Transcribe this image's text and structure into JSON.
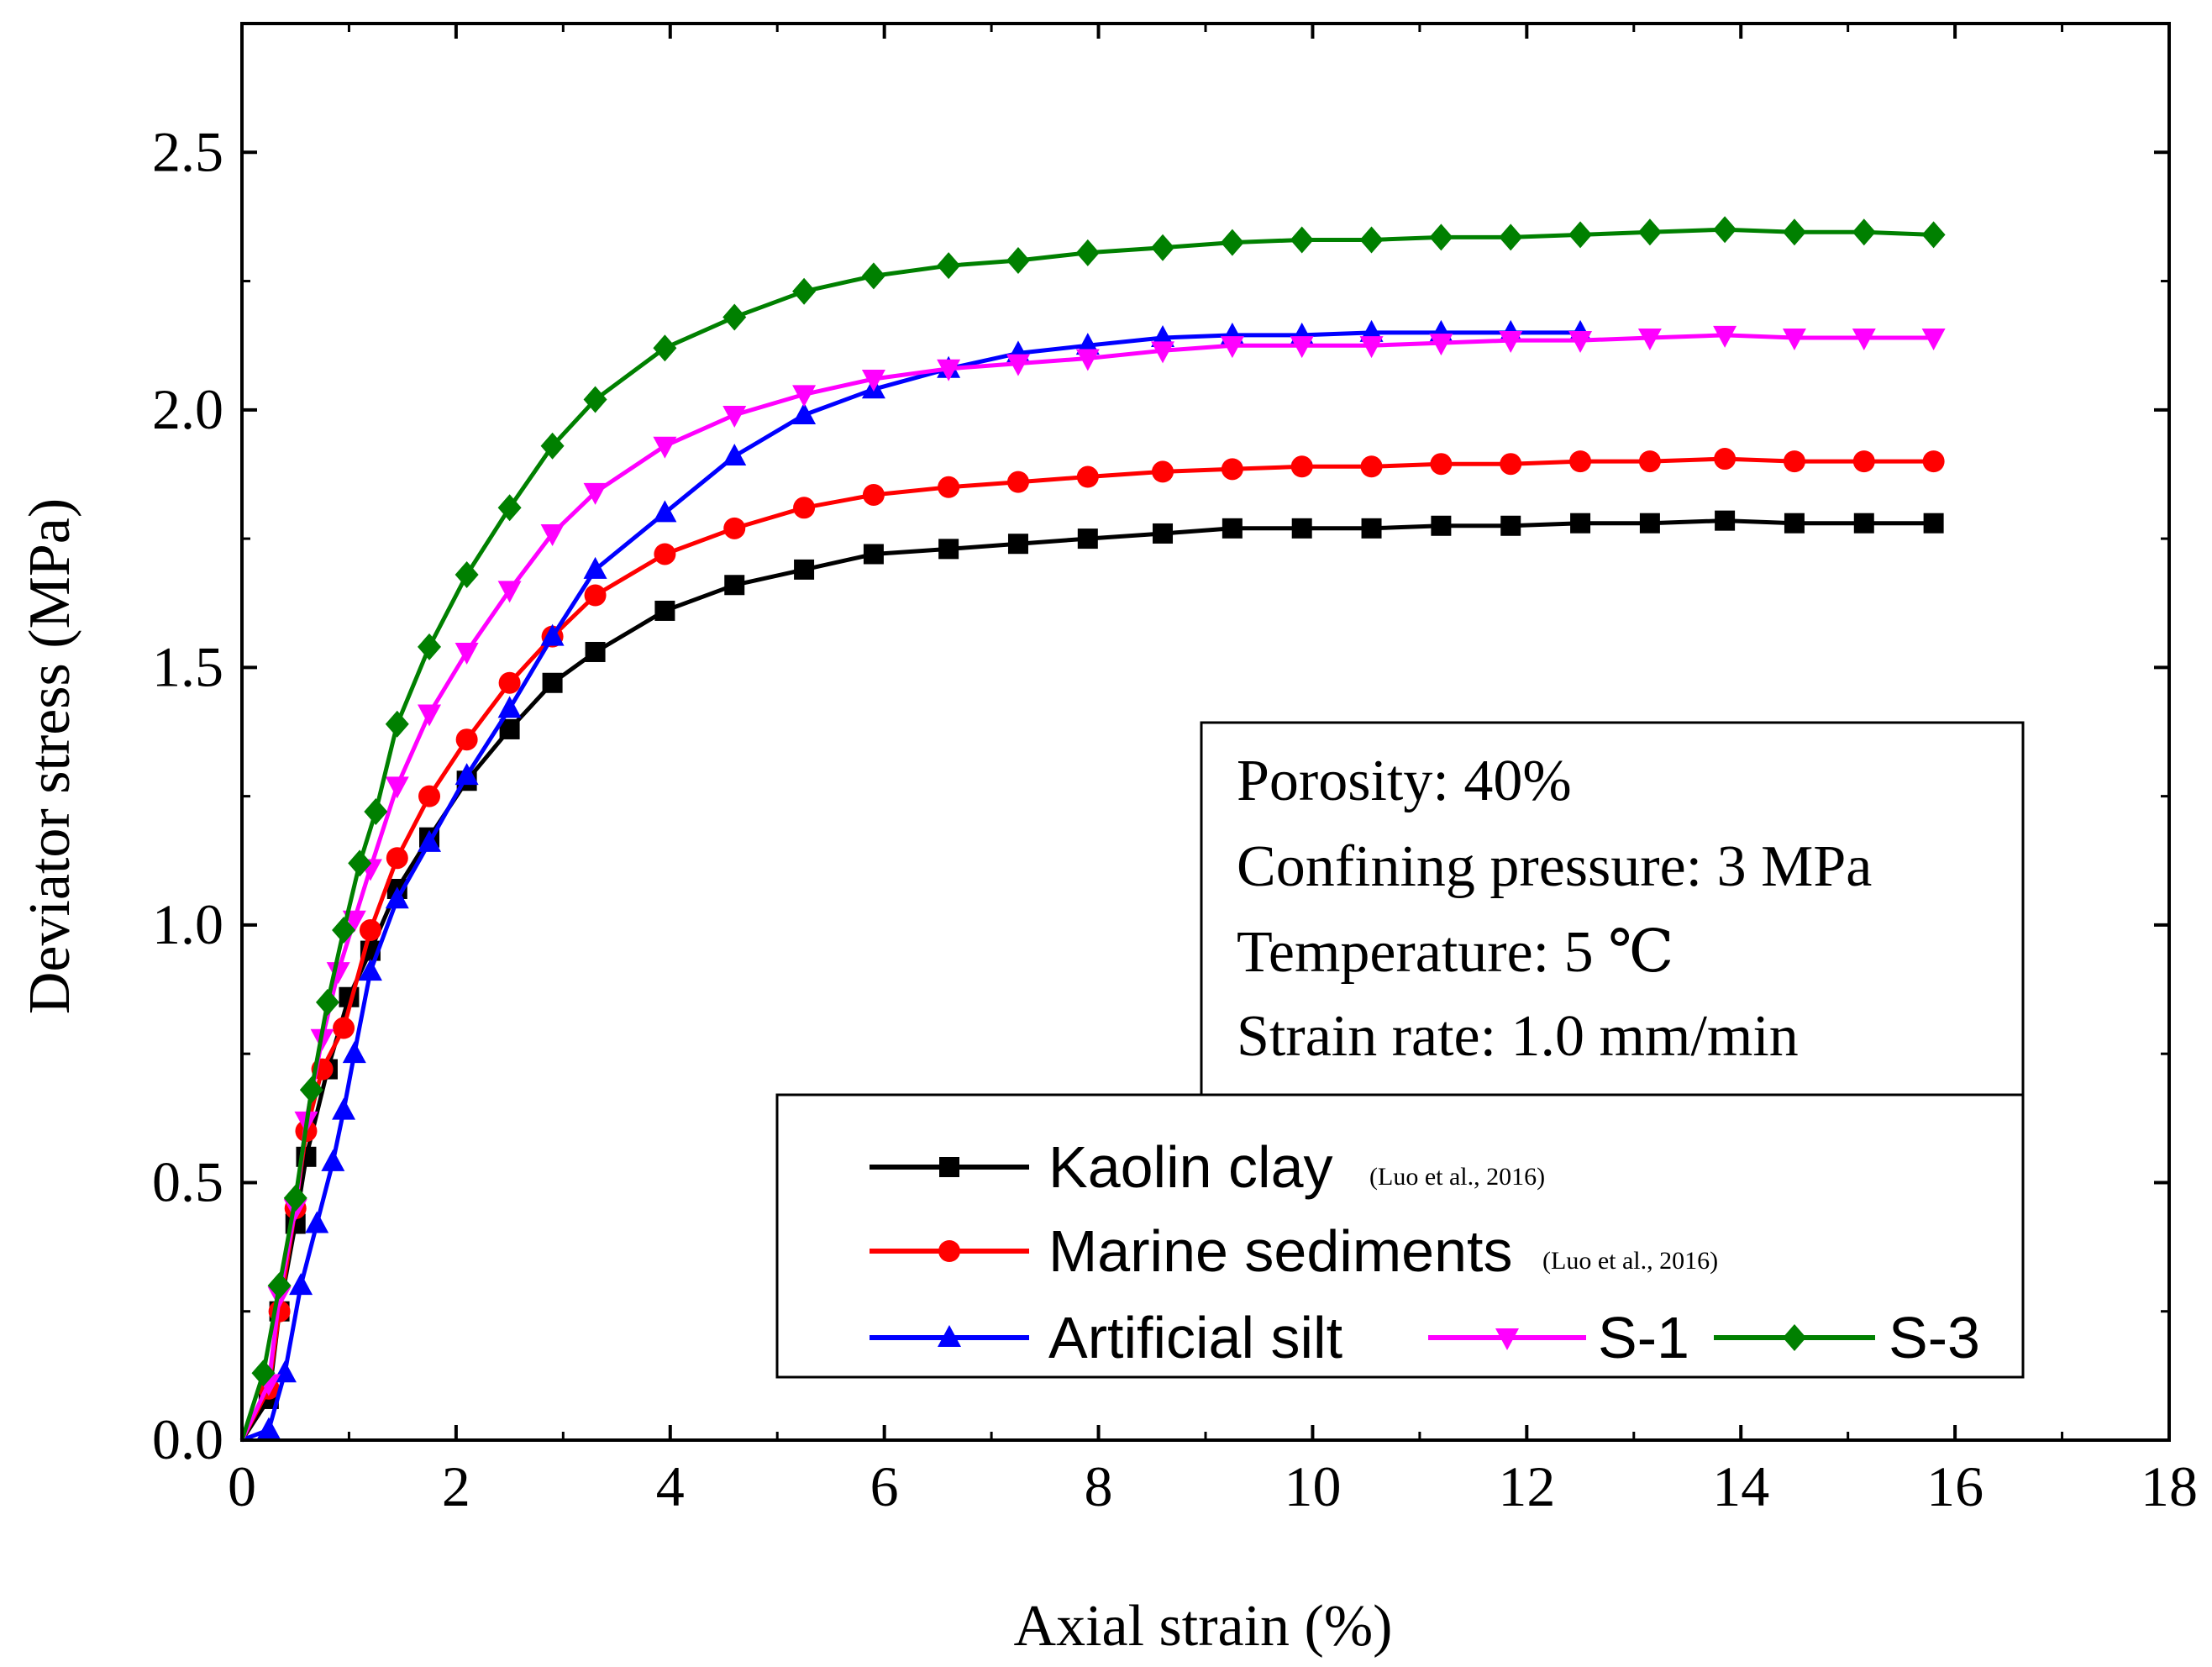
{
  "chart_data": {
    "type": "line",
    "xlabel": "Axial strain (%)",
    "ylabel": "Deviator stress (MPa)",
    "xlim": [
      0,
      18
    ],
    "ylim": [
      0,
      2.75
    ],
    "xticks": [
      0,
      2,
      4,
      6,
      8,
      10,
      12,
      14,
      16,
      18
    ],
    "yticks": [
      0.0,
      0.5,
      1.0,
      1.5,
      2.0,
      2.5
    ],
    "xtick_labels": [
      "0",
      "2",
      "4",
      "6",
      "8",
      "10",
      "12",
      "14",
      "16",
      "18"
    ],
    "ytick_labels": [
      "0.0",
      "0.5",
      "1.0",
      "1.5",
      "2.0",
      "2.5"
    ],
    "annotation": [
      "Porosity: 40%",
      "Confining pressure: 3 MPa",
      "Temperature: 5 ℃",
      "Strain rate: 1.0 mm/min"
    ],
    "series": [
      {
        "name": "Kaolin clay",
        "note": "(Luo et al., 2016)",
        "color": "#000000",
        "marker": "square",
        "x": [
          0,
          0.25,
          0.35,
          0.5,
          0.6,
          0.8,
          1.0,
          1.2,
          1.45,
          1.75,
          2.1,
          2.5,
          2.9,
          3.3,
          3.95,
          4.6,
          5.25,
          5.9,
          6.6,
          7.25,
          7.9,
          8.6,
          9.25,
          9.9,
          10.55,
          11.2,
          11.85,
          12.5,
          13.15,
          13.85,
          14.5,
          15.15,
          15.8
        ],
        "y": [
          0,
          0.08,
          0.25,
          0.42,
          0.55,
          0.72,
          0.86,
          0.95,
          1.07,
          1.17,
          1.28,
          1.38,
          1.47,
          1.53,
          1.61,
          1.66,
          1.69,
          1.72,
          1.73,
          1.74,
          1.75,
          1.76,
          1.77,
          1.77,
          1.77,
          1.775,
          1.775,
          1.78,
          1.78,
          1.785,
          1.78,
          1.78,
          1.78
        ]
      },
      {
        "name": "Marine sediments",
        "note": "(Luo et al., 2016)",
        "color": "#ff0000",
        "marker": "circle",
        "x": [
          0,
          0.25,
          0.35,
          0.5,
          0.6,
          0.75,
          0.95,
          1.2,
          1.45,
          1.75,
          2.1,
          2.5,
          2.9,
          3.3,
          3.95,
          4.6,
          5.25,
          5.9,
          6.6,
          7.25,
          7.9,
          8.6,
          9.25,
          9.9,
          10.55,
          11.2,
          11.85,
          12.5,
          13.15,
          13.85,
          14.5,
          15.15,
          15.8
        ],
        "y": [
          0,
          0.1,
          0.25,
          0.45,
          0.6,
          0.72,
          0.8,
          0.99,
          1.13,
          1.25,
          1.36,
          1.47,
          1.56,
          1.64,
          1.72,
          1.77,
          1.81,
          1.835,
          1.85,
          1.86,
          1.87,
          1.88,
          1.885,
          1.89,
          1.89,
          1.895,
          1.895,
          1.9,
          1.9,
          1.905,
          1.9,
          1.9,
          1.9
        ]
      },
      {
        "name": "Artificial silt",
        "color": "#0000ff",
        "marker": "triangle-up",
        "x": [
          0,
          0.25,
          0.4,
          0.55,
          0.7,
          0.85,
          0.95,
          1.05,
          1.2,
          1.45,
          1.75,
          2.1,
          2.5,
          2.9,
          3.3,
          3.95,
          4.6,
          5.25,
          5.9,
          6.6,
          7.25,
          7.9,
          8.6,
          9.25,
          9.9,
          10.55,
          11.2,
          11.85,
          12.5
        ],
        "y": [
          0,
          0.02,
          0.13,
          0.3,
          0.42,
          0.54,
          0.64,
          0.75,
          0.91,
          1.05,
          1.16,
          1.29,
          1.42,
          1.56,
          1.69,
          1.8,
          1.91,
          1.99,
          2.04,
          2.08,
          2.11,
          2.125,
          2.14,
          2.145,
          2.145,
          2.15,
          2.15,
          2.15,
          2.15
        ]
      },
      {
        "name": "S-1",
        "color": "#ff00ff",
        "marker": "triangle-down",
        "x": [
          0,
          0.25,
          0.35,
          0.5,
          0.6,
          0.75,
          0.9,
          1.05,
          1.2,
          1.45,
          1.75,
          2.1,
          2.5,
          2.9,
          3.3,
          3.95,
          4.6,
          5.25,
          5.9,
          6.6,
          7.25,
          7.9,
          8.6,
          9.25,
          9.9,
          10.55,
          11.2,
          11.85,
          12.5,
          13.15,
          13.85,
          14.5,
          15.15,
          15.8
        ],
        "y": [
          0,
          0.11,
          0.28,
          0.45,
          0.62,
          0.78,
          0.91,
          1.01,
          1.11,
          1.27,
          1.41,
          1.53,
          1.65,
          1.76,
          1.84,
          1.93,
          1.99,
          2.03,
          2.06,
          2.08,
          2.09,
          2.1,
          2.115,
          2.125,
          2.125,
          2.125,
          2.13,
          2.135,
          2.135,
          2.14,
          2.145,
          2.14,
          2.14,
          2.14
        ]
      },
      {
        "name": "S-3",
        "color": "#008000",
        "marker": "diamond",
        "x": [
          0,
          0.2,
          0.35,
          0.5,
          0.65,
          0.8,
          0.95,
          1.1,
          1.25,
          1.45,
          1.75,
          2.1,
          2.5,
          2.9,
          3.3,
          3.95,
          4.6,
          5.25,
          5.9,
          6.6,
          7.25,
          7.9,
          8.6,
          9.25,
          9.9,
          10.55,
          11.2,
          11.85,
          12.5,
          13.15,
          13.85,
          14.5,
          15.15,
          15.8
        ],
        "y": [
          0,
          0.13,
          0.3,
          0.47,
          0.68,
          0.85,
          0.99,
          1.12,
          1.22,
          1.39,
          1.54,
          1.68,
          1.81,
          1.93,
          2.02,
          2.12,
          2.18,
          2.23,
          2.26,
          2.28,
          2.29,
          2.305,
          2.315,
          2.325,
          2.33,
          2.33,
          2.335,
          2.335,
          2.34,
          2.345,
          2.35,
          2.345,
          2.345,
          2.34
        ]
      }
    ]
  }
}
